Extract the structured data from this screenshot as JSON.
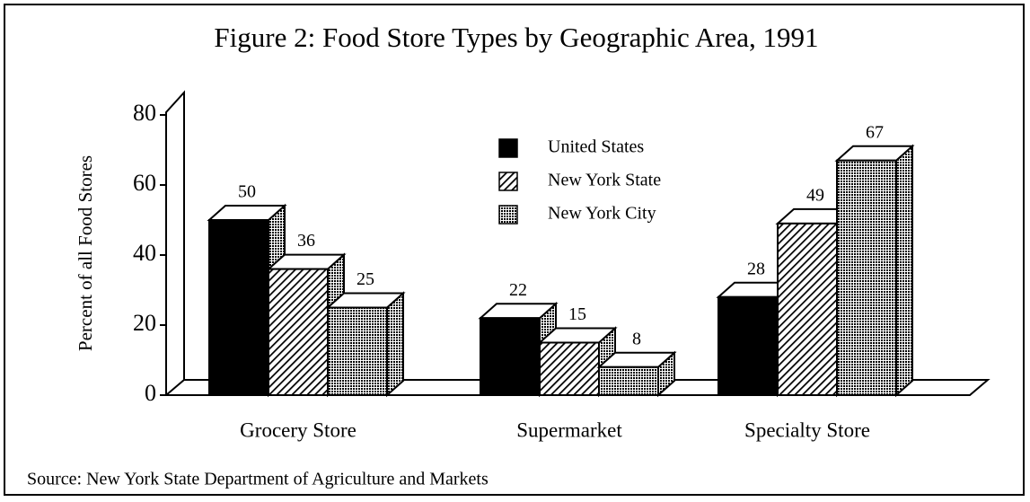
{
  "chart_data": {
    "type": "bar3d",
    "title": "Figure 2:  Food Store Types by Geographic Area, 1991",
    "y_label": "Percent of all Food Stores",
    "source": "Source: New York State Department of Agriculture and Markets",
    "categories": [
      "Grocery Store",
      "Supermarket",
      "Specialty Store"
    ],
    "series": [
      {
        "name": "United States",
        "color": "#000000",
        "pattern": "solid",
        "values": [
          50,
          22,
          28
        ]
      },
      {
        "name": "New York State",
        "color": "#000000",
        "pattern": "hatch",
        "values": [
          36,
          15,
          49
        ]
      },
      {
        "name": "New York City",
        "color": "#000000",
        "pattern": "dots",
        "values": [
          25,
          8,
          67
        ]
      }
    ],
    "ylim": [
      0,
      80
    ],
    "yticks": [
      0,
      20,
      40,
      60,
      80
    ],
    "value_labels_shown": true
  }
}
